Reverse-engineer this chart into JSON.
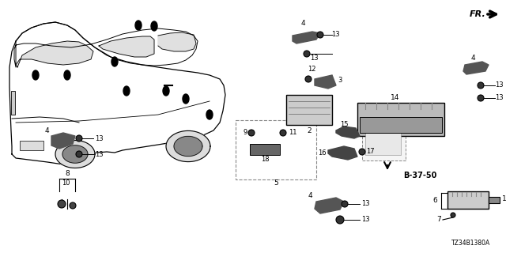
{
  "bg_color": "#ffffff",
  "diagram_code": "TZ34B1380A",
  "fr_label": "FR.",
  "ref_label": "B-37-50",
  "fig_width": 6.4,
  "fig_height": 3.2,
  "dpi": 100
}
